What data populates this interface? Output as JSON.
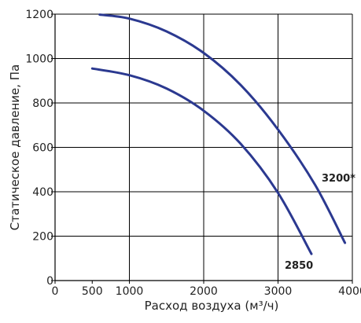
{
  "chart_data": {
    "type": "line",
    "title": "",
    "xlabel": "Расход воздуха (м³/ч)",
    "ylabel": "Статическое давление, Па",
    "xlim": [
      0,
      4000
    ],
    "ylim": [
      0,
      1200
    ],
    "x_ticks": [
      {
        "value": 0,
        "label": "0"
      },
      {
        "value": 500,
        "label": "500"
      },
      {
        "value": 1000,
        "label": "1000"
      },
      {
        "value": 2000,
        "label": "2000"
      },
      {
        "value": 3000,
        "label": "3000"
      },
      {
        "value": 4000,
        "label": "4000"
      }
    ],
    "y_ticks": [
      {
        "value": 0,
        "label": "0"
      },
      {
        "value": 200,
        "label": "200"
      },
      {
        "value": 400,
        "label": "400"
      },
      {
        "value": 600,
        "label": "600"
      },
      {
        "value": 800,
        "label": "800"
      },
      {
        "value": 1000,
        "label": "1000"
      },
      {
        "value": 1200,
        "label": "1200"
      }
    ],
    "grid": true,
    "line_color": "#2b3990",
    "series": [
      {
        "name": "3200*",
        "x": [
          600,
          1000,
          1500,
          2000,
          2500,
          3000,
          3500,
          3900
        ],
        "y": [
          1198,
          1180,
          1122,
          1025,
          880,
          680,
          430,
          170
        ]
      },
      {
        "name": "2850",
        "x": [
          500,
          1000,
          1500,
          2000,
          2500,
          3000,
          3450
        ],
        "y": [
          955,
          925,
          865,
          765,
          615,
          395,
          120
        ]
      }
    ]
  }
}
